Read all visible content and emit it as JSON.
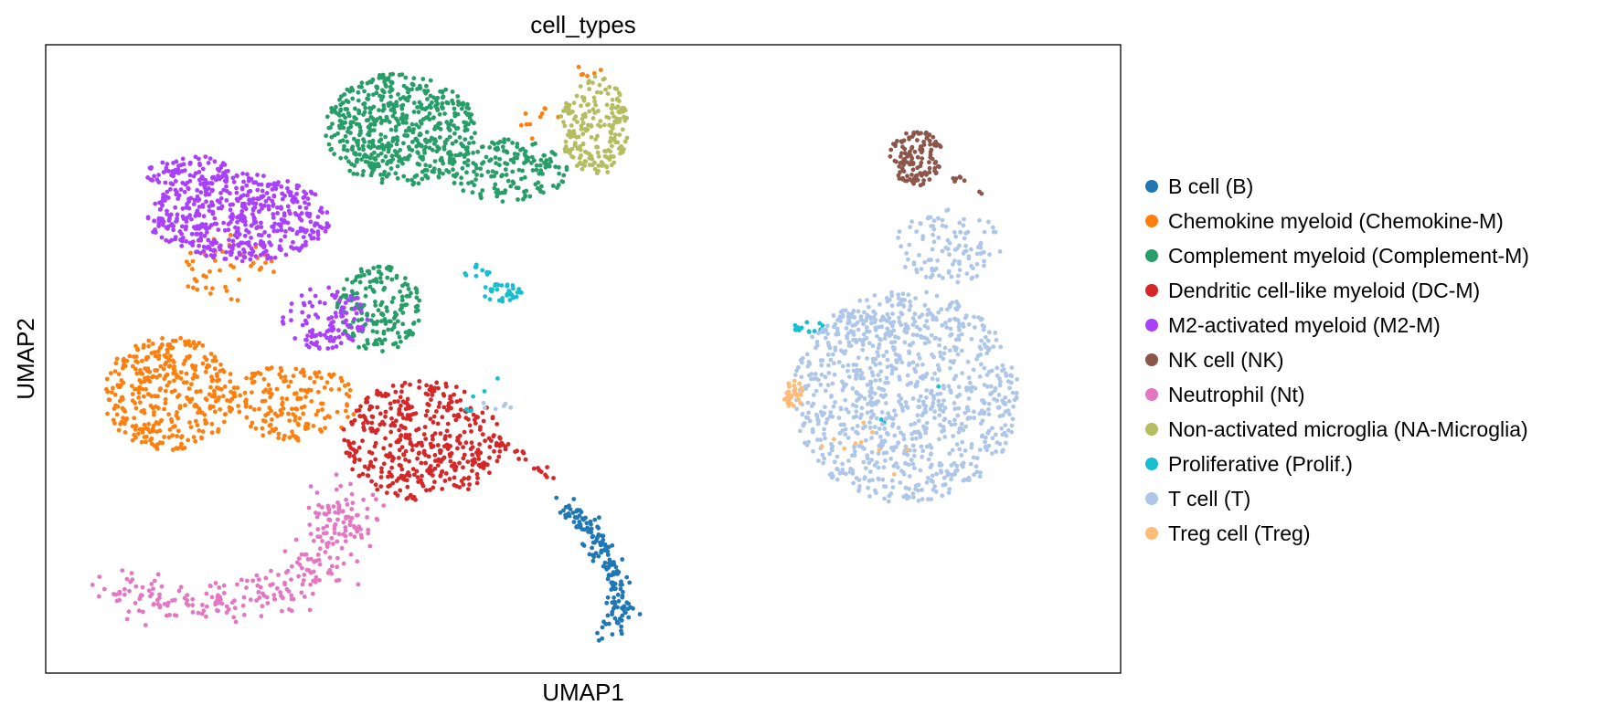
{
  "chart_data": {
    "type": "scatter",
    "title": "cell_types",
    "xlabel": "UMAP1",
    "ylabel": "UMAP2",
    "xticks": [],
    "yticks": [],
    "xlim": [
      0,
      100
    ],
    "ylim": [
      0,
      100
    ],
    "grid": false,
    "legend_position": "right, outside plot",
    "series": [
      {
        "name": "B cell (B)",
        "color": "#1f77b4",
        "clusters": [
          {
            "shape": "path",
            "n": 170,
            "spread": 1.1,
            "path": [
              [
                48.5,
                26.5
              ],
              [
                50.5,
                23
              ],
              [
                52.5,
                17
              ],
              [
                53.5,
                10
              ],
              [
                52.0,
                5
              ]
            ]
          }
        ]
      },
      {
        "name": "Chemokine myeloid (Chemokine-M)",
        "color": "#ff7f0e",
        "clusters": [
          {
            "shape": "ellipse",
            "cx": 11.5,
            "cy": 44.5,
            "rx": 6.2,
            "ry": 9.0,
            "n": 370
          },
          {
            "shape": "ellipse",
            "cx": 23.0,
            "cy": 43.0,
            "rx": 6.0,
            "ry": 6.0,
            "n": 170
          },
          {
            "shape": "ellipse",
            "cx": 17.0,
            "cy": 64.5,
            "rx": 4.5,
            "ry": 5.5,
            "n": 45
          },
          {
            "shape": "ellipse",
            "cx": 45.5,
            "cy": 88.0,
            "rx": 2.5,
            "ry": 3.0,
            "n": 10
          },
          {
            "shape": "ellipse",
            "cx": 50.5,
            "cy": 96.0,
            "rx": 1.5,
            "ry": 1.2,
            "n": 6
          }
        ]
      },
      {
        "name": "Complement myeloid (Complement-M)",
        "color": "#279e68",
        "clusters": [
          {
            "shape": "ellipse",
            "cx": 33.0,
            "cy": 86.5,
            "rx": 7.0,
            "ry": 9.0,
            "n": 560
          },
          {
            "shape": "ellipse",
            "cx": 43.0,
            "cy": 80.0,
            "rx": 5.5,
            "ry": 5.0,
            "n": 170
          },
          {
            "shape": "ellipse",
            "cx": 31.0,
            "cy": 58.0,
            "rx": 4.0,
            "ry": 7.0,
            "n": 190
          }
        ]
      },
      {
        "name": "Dendritic cell-like myeloid (DC-M)",
        "color": "#d62728",
        "clusters": [
          {
            "shape": "ellipse",
            "cx": 35.0,
            "cy": 37.0,
            "rx": 7.5,
            "ry": 9.5,
            "n": 430
          },
          {
            "shape": "path",
            "n": 26,
            "spread": 0.5,
            "path": [
              [
                40.5,
                38
              ],
              [
                44.5,
                35
              ],
              [
                47.5,
                30
              ]
            ]
          }
        ]
      },
      {
        "name": "M2-activated myeloid  (M2-M)",
        "color": "#aa40fc",
        "clusters": [
          {
            "shape": "ellipse",
            "cx": 18.0,
            "cy": 72.5,
            "rx": 8.5,
            "ry": 7.0,
            "n": 520
          },
          {
            "shape": "ellipse",
            "cx": 13.0,
            "cy": 80.0,
            "rx": 4.0,
            "ry": 2.5,
            "n": 70
          },
          {
            "shape": "ellipse",
            "cx": 26.0,
            "cy": 56.5,
            "rx": 4.0,
            "ry": 5.0,
            "n": 110
          }
        ]
      },
      {
        "name": "NK cell (NK)",
        "color": "#8c564b",
        "clusters": [
          {
            "shape": "ellipse",
            "cx": 81.0,
            "cy": 82.0,
            "rx": 2.5,
            "ry": 4.5,
            "n": 120
          },
          {
            "shape": "path",
            "n": 8,
            "spread": 0.5,
            "path": [
              [
                84,
                80
              ],
              [
                87,
                76.5
              ]
            ]
          }
        ]
      },
      {
        "name": "Neutrophil (Nt)",
        "color": "#e377c2",
        "clusters": [
          {
            "shape": "path",
            "n": 290,
            "spread": 2.8,
            "path": [
              [
                6,
                14
              ],
              [
                12,
                11
              ],
              [
                18,
                11.5
              ],
              [
                23,
                14
              ],
              [
                26.5,
                19
              ],
              [
                27.5,
                24
              ],
              [
                27.5,
                28
              ]
            ]
          }
        ]
      },
      {
        "name": "Non-activated microglia (NA-Microglia)",
        "color": "#b5bd61",
        "clusters": [
          {
            "shape": "ellipse",
            "cx": 51.0,
            "cy": 87.0,
            "rx": 3.2,
            "ry": 8.0,
            "n": 210
          }
        ]
      },
      {
        "name": "Proliferative (Prolif.)",
        "color": "#17becf",
        "clusters": [
          {
            "shape": "ellipse",
            "cx": 42.5,
            "cy": 60.5,
            "rx": 2.0,
            "ry": 1.5,
            "n": 35
          },
          {
            "shape": "ellipse",
            "cx": 40.0,
            "cy": 64.0,
            "rx": 1.5,
            "ry": 1.0,
            "n": 10
          },
          {
            "shape": "ellipse",
            "cx": 71.0,
            "cy": 55.0,
            "rx": 1.8,
            "ry": 1.0,
            "n": 16
          },
          {
            "shape": "ellipse",
            "cx": 41.0,
            "cy": 44.0,
            "rx": 3.0,
            "ry": 4.0,
            "n": 6
          },
          {
            "shape": "ellipse",
            "cx": 82.0,
            "cy": 42.0,
            "rx": 6.0,
            "ry": 4.0,
            "n": 3
          }
        ]
      },
      {
        "name": "T cell (T)",
        "color": "#aec7e8",
        "clusters": [
          {
            "shape": "ellipse",
            "cx": 80.0,
            "cy": 44.0,
            "rx": 10.5,
            "ry": 17.0,
            "n": 950
          },
          {
            "shape": "ellipse",
            "cx": 84.0,
            "cy": 68.0,
            "rx": 5.0,
            "ry": 6.0,
            "n": 110
          },
          {
            "shape": "ellipse",
            "cx": 76.0,
            "cy": 55.0,
            "rx": 3.0,
            "ry": 2.5,
            "n": 30
          },
          {
            "shape": "ellipse",
            "cx": 42.0,
            "cy": 42.5,
            "rx": 1.5,
            "ry": 1.0,
            "n": 6
          }
        ]
      },
      {
        "name": "Treg cell (Treg)",
        "color": "#ffbb78",
        "clusters": [
          {
            "shape": "ellipse",
            "cx": 69.5,
            "cy": 44.5,
            "rx": 1.0,
            "ry": 2.2,
            "n": 34
          },
          {
            "shape": "ellipse",
            "cx": 77.0,
            "cy": 34.0,
            "rx": 5.5,
            "ry": 6.0,
            "n": 10
          }
        ]
      }
    ]
  }
}
